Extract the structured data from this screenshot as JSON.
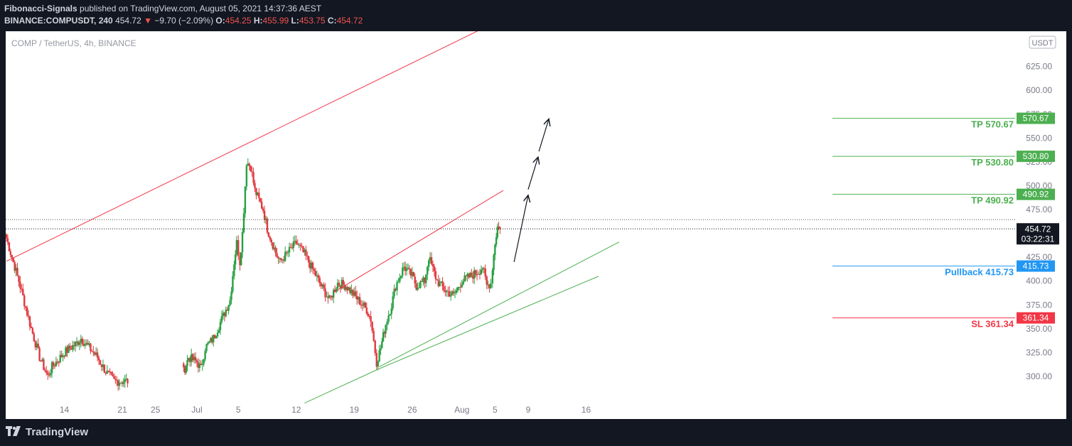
{
  "header": {
    "publisher": "Fibonacci-Signals",
    "published_text": "published on TradingView.com, August 05, 2021 14:37:36 AEST",
    "symbol": "BINANCE:COMPUSDT,",
    "interval": "240",
    "last": "454.72",
    "change_arrow": "▼",
    "change": "−9.70 (−2.09%)",
    "o_label": "O:",
    "o": "454.25",
    "h_label": "H:",
    "h": "455.99",
    "l_label": "L:",
    "l": "453.75",
    "c_label": "C:",
    "c": "454.72"
  },
  "chart_title": "COMP / TetherUS, 4h, BINANCE",
  "currency_badge": "USDT",
  "footer_brand": "TradingView",
  "colors": {
    "up": "#26a041",
    "down": "#e0393f",
    "tp": "#4caf50",
    "pullback": "#2196f3",
    "sl": "#f23645",
    "channel": "#f23645",
    "trend": "#4caf50",
    "axis_text": "#787b86"
  },
  "chart_data": {
    "type": "candlestick",
    "title": "COMP / TetherUS, 4h, BINANCE",
    "y_ticks": [
      300,
      325,
      350,
      375,
      400,
      425,
      450,
      475,
      500,
      525,
      550,
      575,
      600,
      625
    ],
    "y_tick_labels": [
      "300.00",
      "325.00",
      "350.00",
      "375.00",
      "400.00",
      "425.00",
      "450.00",
      "475.00",
      "500.00",
      "525.00",
      "550.00",
      "575.00",
      "600.00",
      "625.00"
    ],
    "x_ticks": [
      {
        "label": "14",
        "day": 14
      },
      {
        "label": "21",
        "day": 21
      },
      {
        "label": "25",
        "day": 25
      },
      {
        "label": "Jul",
        "day": 30
      },
      {
        "label": "5",
        "day": 35
      },
      {
        "label": "12",
        "day": 42
      },
      {
        "label": "19",
        "day": 49
      },
      {
        "label": "26",
        "day": 56
      },
      {
        "label": "Aug",
        "day": 62
      },
      {
        "label": "5",
        "day": 66
      },
      {
        "label": "9",
        "day": 70
      },
      {
        "label": "16",
        "day": 77
      }
    ],
    "path": [
      [
        7,
        445
      ],
      [
        8.5,
        400
      ],
      [
        10,
        350
      ],
      [
        11,
        320
      ],
      [
        12,
        300
      ],
      [
        12.5,
        310
      ],
      [
        14,
        325
      ],
      [
        15.5,
        335
      ],
      [
        16,
        340
      ],
      [
        17,
        330
      ],
      [
        18,
        320
      ],
      [
        19,
        305
      ],
      [
        20,
        295
      ],
      [
        21.8,
        295
      ],
      [
        28.4,
        305
      ],
      [
        29,
        320
      ],
      [
        30,
        315
      ],
      [
        30.5,
        308
      ],
      [
        31,
        330
      ],
      [
        32,
        340
      ],
      [
        33,
        360
      ],
      [
        34,
        380
      ],
      [
        34.5,
        420
      ],
      [
        34.8,
        440
      ],
      [
        35,
        430
      ],
      [
        35.2,
        420
      ],
      [
        35.5,
        450
      ],
      [
        36,
        525
      ],
      [
        36.5,
        520
      ],
      [
        37,
        495
      ],
      [
        38,
        475
      ],
      [
        38.5,
        455
      ],
      [
        39.5,
        430
      ],
      [
        40,
        420
      ],
      [
        41,
        430
      ],
      [
        42,
        440
      ],
      [
        43,
        428
      ],
      [
        44,
        412
      ],
      [
        45,
        395
      ],
      [
        46,
        380
      ],
      [
        47,
        398
      ],
      [
        48,
        395
      ],
      [
        49,
        385
      ],
      [
        49.5,
        380
      ],
      [
        50.5,
        370
      ],
      [
        51,
        360
      ],
      [
        51.7,
        315
      ],
      [
        52.2,
        330
      ],
      [
        52.8,
        355
      ],
      [
        53.5,
        375
      ],
      [
        54,
        395
      ],
      [
        55,
        415
      ],
      [
        56,
        405
      ],
      [
        56.5,
        395
      ],
      [
        57.5,
        400
      ],
      [
        58,
        425
      ],
      [
        59,
        400
      ],
      [
        60,
        390
      ],
      [
        61,
        385
      ],
      [
        62,
        400
      ],
      [
        63,
        405
      ],
      [
        64,
        410
      ],
      [
        64.5,
        415
      ],
      [
        65,
        395
      ],
      [
        65.5,
        398
      ],
      [
        65.7,
        415
      ],
      [
        66,
        440
      ],
      [
        66.3,
        457
      ],
      [
        66.6,
        454.72
      ]
    ],
    "price_levels": [
      {
        "label": "TP 570.67",
        "price_label": "570.67",
        "value": 570.67,
        "kind": "tp"
      },
      {
        "label": "TP 530.80",
        "price_label": "530.80",
        "value": 530.8,
        "kind": "tp"
      },
      {
        "label": "TP 490.92",
        "price_label": "490.92",
        "value": 490.92,
        "kind": "tp"
      },
      {
        "label": "Pullback 415.73",
        "price_label": "415.73",
        "value": 415.73,
        "kind": "pullback"
      },
      {
        "label": "SL 361.34",
        "price_label": "361.34",
        "value": 361.34,
        "kind": "sl"
      }
    ],
    "current_price": {
      "value": 454.72,
      "label": "454.72",
      "countdown": "03:22:31"
    },
    "dotted_level": 464.42,
    "upper_channel": [
      [
        7,
        420.8
      ],
      [
        66.2,
        672
      ]
    ],
    "lower_red_channel": [
      [
        46.5,
        388
      ],
      [
        67,
        495
      ]
    ],
    "green_trend_1": [
      [
        52,
        310
      ],
      [
        81,
        441
      ]
    ],
    "green_trend_2": [
      [
        52,
        308
      ],
      [
        78.5,
        405
      ]
    ],
    "green_trend_3": [
      [
        43,
        272
      ],
      [
        52,
        308
      ]
    ],
    "projection_arrows": [
      [
        [
          68.3,
          420
        ],
        [
          70,
          490
        ]
      ],
      [
        [
          70,
          496
        ],
        [
          71.2,
          530
        ]
      ],
      [
        [
          71.3,
          536
        ],
        [
          72.5,
          570
        ]
      ]
    ],
    "ylim": [
      270,
      660
    ],
    "xlim": [
      7,
      84
    ]
  }
}
